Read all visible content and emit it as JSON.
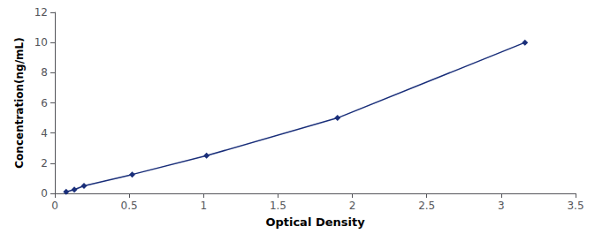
{
  "chart_data": {
    "type": "line",
    "x": [
      0.076,
      0.131,
      0.196,
      0.52,
      1.02,
      1.9,
      3.16
    ],
    "values": [
      0.1,
      0.25,
      0.5,
      1.25,
      2.5,
      5.0,
      10.0
    ],
    "color": "#1a2f7a",
    "marker": "diamond",
    "xlabel": "Optical Density",
    "ylabel": "Concentration(ng/mL)",
    "xlim": [
      0,
      3.5
    ],
    "ylim": [
      0,
      12
    ],
    "xticks": [
      0,
      0.5,
      1,
      1.5,
      2,
      2.5,
      3,
      3.5
    ],
    "yticks": [
      0,
      2,
      4,
      6,
      8,
      10,
      12
    ],
    "grid": false
  }
}
